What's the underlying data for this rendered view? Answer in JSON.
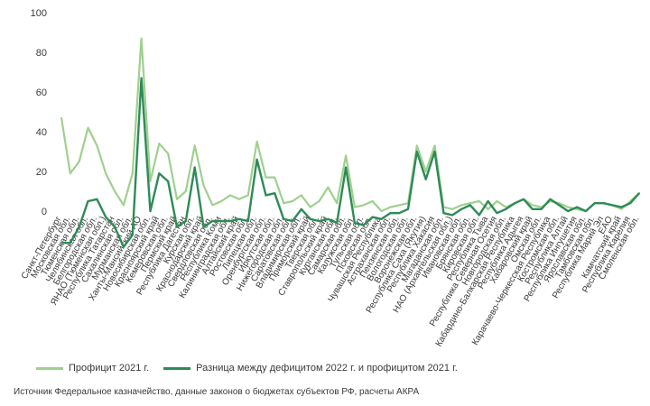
{
  "chart_data": {
    "type": "line",
    "ylim": [
      -10,
      100
    ],
    "yticks": [
      0,
      20,
      40,
      60,
      80,
      100
    ],
    "categories": [
      "Санкт-Петербург",
      "Московская обл.",
      "Тюменская обл.",
      "Челябинская обл.",
      "Белгородская обл.",
      "ЯНАО (Тюменская обл.)",
      "Республика Татарстан",
      "Сахалинская обл.",
      "Мурманская обл.",
      "Ханты-Мансийский АО",
      "Новосибирская обл.",
      "Красноярский край",
      "Кемеровская обл.",
      "Пермский край",
      "Республика Дагестан",
      "Курская обл.",
      "Краснодарский край",
      "Свердловская обл.",
      "Республика Коми",
      "Калининградская обл.",
      "Алтайский край",
      "Ростовская обл.",
      "Липецкая обл.",
      "Оренбургская обл.",
      "Иркутская обл.",
      "Нижегородская обл.",
      "Саратовская обл.",
      "Владимирская обл.",
      "Приморский край",
      "Тверская обл.",
      "Ставропольский край",
      "Курганская обл.",
      "Самарская обл.",
      "Калужская обл.",
      "Тульская обл.",
      "Псковская обл.",
      "Чувашская Республика",
      "Астраханская обл.",
      "Пензенская обл.",
      "Вологодская обл.",
      "Воронежская обл.",
      "Республика Саха (Якутия)",
      "Республика Хакасия",
      "Магаданская обл.",
      "НАО (Архангельская обл.)",
      "Ивановская обл.",
      "Брянская обл.",
      "Кировская обл.",
      "Республика Тыва",
      "Республика Северная Осетия",
      "Новгородская обл.",
      "Кабардино-Балкарская Республика",
      "Республика Адыгея",
      "Хабаровский край",
      "Омская обл.",
      "Карачаево-Черкесская Республика",
      "Костромская обл.",
      "Республика Алтай",
      "Республика Ингушетия",
      "Ярославская обл.",
      "Тамбовская обл.",
      "Республика Марий Эл",
      "ЕАО",
      "Камчатский край",
      "Республика Карелия",
      "Смоленская обл."
    ],
    "series": [
      {
        "name": "Профицит 2021 г.",
        "color": "#9fd08e",
        "values": [
          47,
          19,
          25,
          42,
          33,
          19,
          10,
          3,
          19,
          87,
          15,
          34,
          29,
          6,
          10,
          33,
          13,
          3,
          5,
          8,
          6,
          8,
          35,
          17,
          17,
          4,
          5,
          8,
          2,
          5,
          12,
          4,
          28,
          2,
          3,
          5,
          0,
          2,
          3,
          4,
          33,
          20,
          33,
          2,
          1,
          3,
          4,
          5,
          1,
          5,
          2,
          4,
          6,
          3,
          2,
          5,
          4,
          2,
          1,
          0,
          4,
          4,
          3,
          1,
          5,
          9
        ]
      },
      {
        "name": "Разница между дефицитом 2022 г. и профицитом 2021 г.",
        "color": "#2e8b57",
        "values": [
          -16,
          -16,
          -8,
          5,
          6,
          -3,
          -8,
          -18,
          -12,
          67,
          0,
          19,
          15,
          -8,
          -5,
          22,
          -8,
          -5,
          -5,
          -5,
          -4,
          -5,
          26,
          8,
          9,
          -4,
          -5,
          1,
          -4,
          -5,
          -4,
          -6,
          22,
          -6,
          -7,
          -3,
          -4,
          -1,
          -1,
          1,
          30,
          16,
          30,
          -1,
          -2,
          1,
          3,
          -2,
          5,
          -1,
          1,
          4,
          6,
          1,
          1,
          6,
          3,
          0,
          2,
          0,
          4,
          4,
          3,
          2,
          4,
          9
        ]
      }
    ]
  },
  "legend": {
    "series_a": "Профицит 2021 г.",
    "series_b": "Разница между дефицитом 2022 г. и профицитом 2021 г."
  },
  "source": "Источник Федеральное казначейство, данные законов о бюджетах субъектов РФ, расчеты АКРА"
}
